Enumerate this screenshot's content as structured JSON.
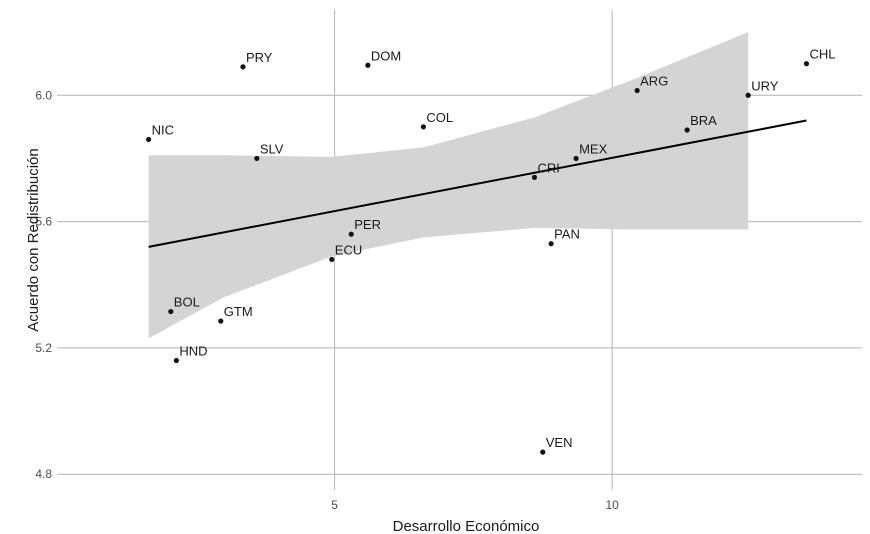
{
  "chart_data": {
    "type": "scatter",
    "title": "",
    "xlabel": "Desarrollo Económico",
    "ylabel": "Acuerdo con Redistribución",
    "xlim": [
      0.0,
      14.5
    ],
    "ylim": [
      4.75,
      6.27
    ],
    "x_ticks": [
      5,
      10
    ],
    "x_tick_labels": [
      "5",
      "10"
    ],
    "y_ticks": [
      4.8,
      5.2,
      5.6,
      6.0
    ],
    "y_tick_labels": [
      "4.8",
      "5.2",
      "5.6",
      "6.0"
    ],
    "grid": true,
    "legend": "none",
    "points": [
      {
        "label": "NIC",
        "x": 1.65,
        "y": 5.86
      },
      {
        "label": "PRY",
        "x": 3.35,
        "y": 6.09
      },
      {
        "label": "DOM",
        "x": 5.6,
        "y": 6.095
      },
      {
        "label": "SLV",
        "x": 3.6,
        "y": 5.8
      },
      {
        "label": "COL",
        "x": 6.6,
        "y": 5.9
      },
      {
        "label": "BOL",
        "x": 2.05,
        "y": 5.315
      },
      {
        "label": "GTM",
        "x": 2.95,
        "y": 5.285
      },
      {
        "label": "HND",
        "x": 2.15,
        "y": 5.16
      },
      {
        "label": "PER",
        "x": 5.3,
        "y": 5.56
      },
      {
        "label": "ECU",
        "x": 4.95,
        "y": 5.48
      },
      {
        "label": "CRI",
        "x": 8.6,
        "y": 5.74
      },
      {
        "label": "MEX",
        "x": 9.35,
        "y": 5.8
      },
      {
        "label": "PAN",
        "x": 8.9,
        "y": 5.53
      },
      {
        "label": "VEN",
        "x": 8.75,
        "y": 4.87
      },
      {
        "label": "ARG",
        "x": 10.45,
        "y": 6.015
      },
      {
        "label": "BRA",
        "x": 11.35,
        "y": 5.89
      },
      {
        "label": "URY",
        "x": 12.45,
        "y": 6.0
      },
      {
        "label": "CHL",
        "x": 13.5,
        "y": 6.1
      }
    ],
    "fit_line": {
      "x": [
        1.65,
        13.5
      ],
      "y": [
        5.52,
        5.92
      ]
    },
    "confidence_band": {
      "x": [
        1.65,
        3.0,
        4.95,
        6.6,
        8.6,
        10.45,
        12.45
      ],
      "upper": [
        5.81,
        5.81,
        5.805,
        5.835,
        5.93,
        6.055,
        6.2
      ],
      "lower": [
        5.23,
        5.36,
        5.49,
        5.55,
        5.58,
        5.575,
        5.575
      ]
    },
    "colors": {
      "point": "#111111",
      "line": "#000000",
      "band": "#d4d4d4",
      "grid": "#b3b3b3"
    }
  }
}
